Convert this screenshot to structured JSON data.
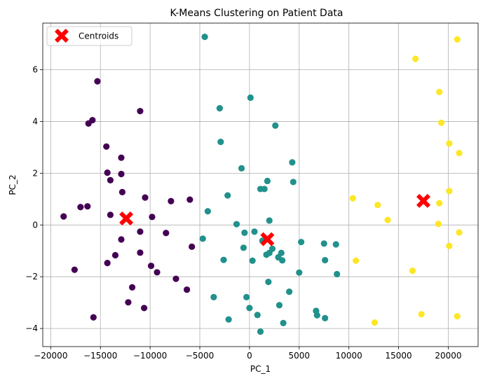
{
  "chart_data": {
    "type": "scatter",
    "title": "K-Means Clustering on Patient Data",
    "xlabel": "PC_1",
    "ylabel": "PC_2",
    "xlim": [
      -20800,
      23000
    ],
    "ylim": [
      -4.7,
      7.8
    ],
    "x_ticks": [
      -20000,
      -15000,
      -10000,
      -5000,
      0,
      5000,
      10000,
      15000,
      20000
    ],
    "y_ticks": [
      -4,
      -2,
      0,
      2,
      4,
      6
    ],
    "grid": true,
    "legend_position": "upper-left",
    "legend": [
      "Centroids"
    ],
    "cluster_colors": [
      "#440154",
      "#21918c",
      "#fde725"
    ],
    "centroid_color": "#ff0000",
    "clusters": [
      {
        "color": "#440154",
        "points": [
          [
            -15300,
            5.55
          ],
          [
            -11000,
            4.4
          ],
          [
            -15800,
            4.05
          ],
          [
            -16200,
            3.92
          ],
          [
            -14400,
            3.03
          ],
          [
            -12900,
            2.6
          ],
          [
            -14300,
            2.02
          ],
          [
            -12900,
            1.97
          ],
          [
            -14000,
            1.73
          ],
          [
            -12800,
            1.27
          ],
          [
            -17000,
            0.69
          ],
          [
            -16300,
            0.72
          ],
          [
            -18700,
            0.33
          ],
          [
            -14000,
            0.39
          ],
          [
            -10500,
            1.06
          ],
          [
            -7900,
            0.92
          ],
          [
            -6000,
            0.98
          ],
          [
            -9800,
            0.31
          ],
          [
            -11000,
            -0.26
          ],
          [
            -8400,
            -0.31
          ],
          [
            -12900,
            -0.56
          ],
          [
            -5800,
            -0.84
          ],
          [
            -13500,
            -1.17
          ],
          [
            -11000,
            -1.07
          ],
          [
            -14300,
            -1.47
          ],
          [
            -9900,
            -1.58
          ],
          [
            -17600,
            -1.73
          ],
          [
            -9300,
            -1.83
          ],
          [
            -7400,
            -2.08
          ],
          [
            -11800,
            -2.41
          ],
          [
            -6300,
            -2.5
          ],
          [
            -12200,
            -2.99
          ],
          [
            -10600,
            -3.21
          ],
          [
            -15700,
            -3.57
          ]
        ]
      },
      {
        "color": "#21918c",
        "points": [
          [
            -4500,
            7.27
          ],
          [
            100,
            4.92
          ],
          [
            -3000,
            4.51
          ],
          [
            2600,
            3.84
          ],
          [
            -2900,
            3.21
          ],
          [
            4300,
            2.42
          ],
          [
            -800,
            2.19
          ],
          [
            1800,
            1.7
          ],
          [
            4400,
            1.66
          ],
          [
            -2200,
            1.14
          ],
          [
            1100,
            1.39
          ],
          [
            1500,
            1.39
          ],
          [
            -4200,
            0.53
          ],
          [
            2000,
            0.17
          ],
          [
            -1300,
            0.03
          ],
          [
            -500,
            -0.3
          ],
          [
            500,
            -0.26
          ],
          [
            1300,
            -0.61
          ],
          [
            5200,
            -0.66
          ],
          [
            7500,
            -0.72
          ],
          [
            8700,
            -0.75
          ],
          [
            -4700,
            -0.53
          ],
          [
            -600,
            -0.88
          ],
          [
            3200,
            -1.08
          ],
          [
            2300,
            -0.92
          ],
          [
            2000,
            -1.08
          ],
          [
            1700,
            -1.15
          ],
          [
            2900,
            -1.25
          ],
          [
            3300,
            -1.37
          ],
          [
            300,
            -1.38
          ],
          [
            -2600,
            -1.35
          ],
          [
            7600,
            -1.36
          ],
          [
            5000,
            -1.84
          ],
          [
            8800,
            -1.9
          ],
          [
            1900,
            -2.2
          ],
          [
            4000,
            -2.58
          ],
          [
            -3600,
            -2.79
          ],
          [
            -300,
            -2.79
          ],
          [
            3000,
            -3.1
          ],
          [
            0,
            -3.21
          ],
          [
            6700,
            -3.32
          ],
          [
            6800,
            -3.49
          ],
          [
            800,
            -3.48
          ],
          [
            -2100,
            -3.65
          ],
          [
            7600,
            -3.6
          ],
          [
            3400,
            -3.79
          ],
          [
            1100,
            -4.12
          ]
        ]
      },
      {
        "color": "#fde725",
        "points": [
          [
            20900,
            7.17
          ],
          [
            16700,
            6.42
          ],
          [
            19100,
            5.14
          ],
          [
            19300,
            3.95
          ],
          [
            20100,
            3.15
          ],
          [
            21100,
            2.78
          ],
          [
            20100,
            1.31
          ],
          [
            10400,
            1.03
          ],
          [
            19100,
            0.84
          ],
          [
            12900,
            0.77
          ],
          [
            13900,
            0.19
          ],
          [
            19000,
            0.04
          ],
          [
            21100,
            -0.29
          ],
          [
            20100,
            -0.81
          ],
          [
            10700,
            -1.38
          ],
          [
            16400,
            -1.77
          ],
          [
            17300,
            -3.45
          ],
          [
            20900,
            -3.53
          ],
          [
            12600,
            -3.77
          ]
        ]
      }
    ],
    "centroids": [
      [
        -12400,
        0.25
      ],
      [
        1800,
        -0.55
      ],
      [
        17500,
        0.93
      ]
    ]
  }
}
